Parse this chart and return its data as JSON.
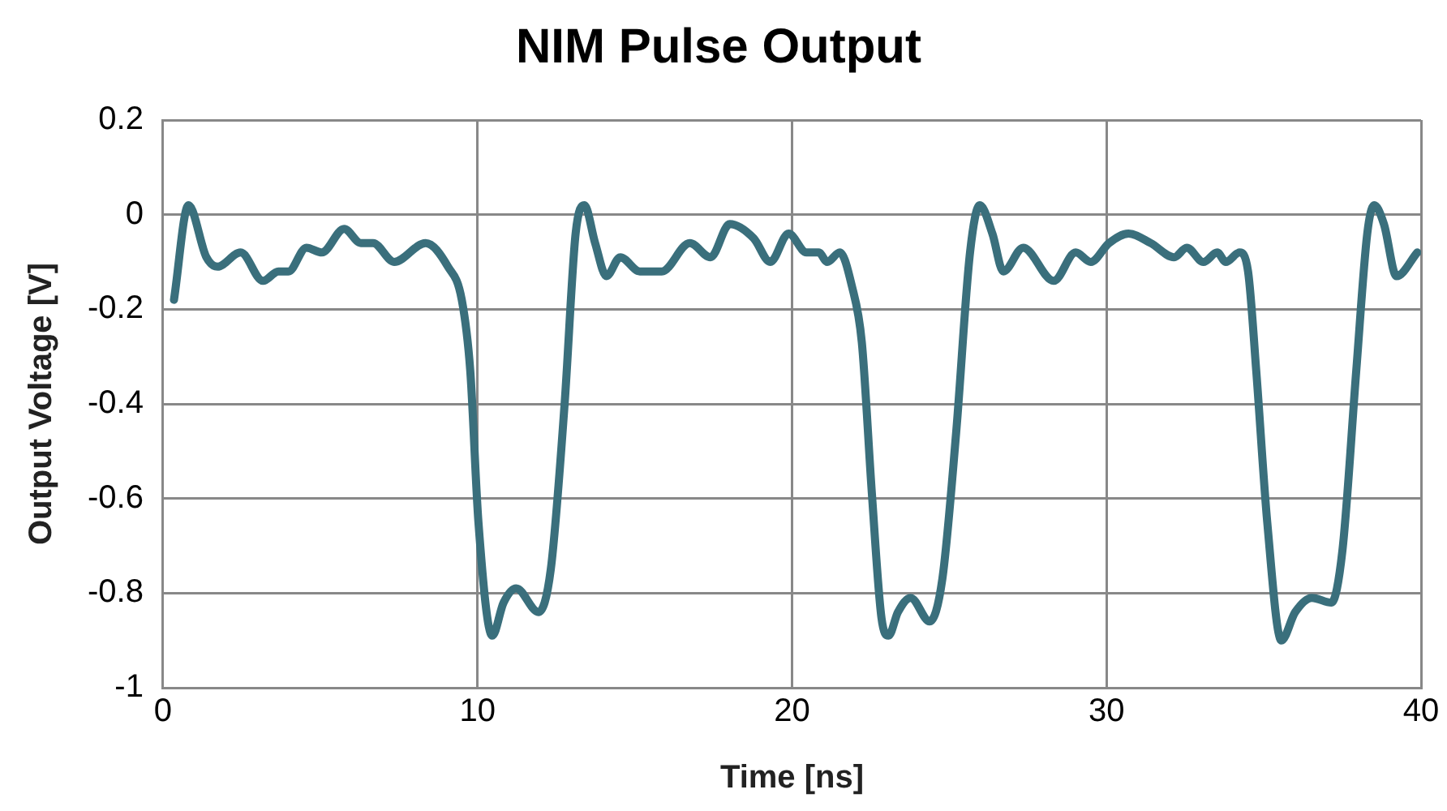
{
  "chart_data": {
    "type": "line",
    "title": "NIM Pulse Output",
    "xlabel": "Time [ns]",
    "ylabel": "Output Voltage [V]",
    "xlim": [
      0,
      40
    ],
    "xticks": [
      0,
      10,
      20,
      30,
      40
    ],
    "ylim": [
      -1,
      0.2
    ],
    "yticks": [
      -1,
      -0.8,
      -0.6,
      -0.4,
      -0.2,
      0,
      0.2
    ],
    "grid": true,
    "legend": false,
    "marker": "none",
    "line_style": "solid",
    "series": [
      {
        "color": "#3a6f7c",
        "x": [
          0.35,
          0.81,
          1.38,
          1.73,
          2.47,
          3.18,
          3.67,
          3.99,
          4.56,
          5.05,
          5.76,
          6.29,
          6.68,
          7.35,
          8.35,
          9.06,
          9.5,
          9.77,
          10.03,
          10.47,
          10.83,
          11.23,
          11.94,
          12.33,
          12.77,
          13.12,
          13.4,
          13.74,
          14.1,
          14.54,
          15.16,
          15.86,
          16.75,
          17.41,
          18.02,
          18.78,
          19.31,
          19.89,
          20.46,
          20.85,
          21.12,
          21.52,
          21.9,
          22.22,
          22.54,
          22.84,
          23.07,
          23.37,
          23.77,
          24.38,
          24.78,
          25.22,
          25.66,
          25.97,
          26.37,
          26.72,
          27.35,
          28.32,
          29.02,
          29.5,
          30.08,
          30.7,
          31.4,
          32.15,
          32.55,
          33.08,
          33.52,
          33.79,
          34.23,
          34.5,
          34.76,
          35.11,
          35.56,
          36.0,
          36.53,
          37.15,
          37.5,
          37.94,
          38.29,
          38.51,
          38.82,
          39.22,
          39.88
        ],
        "values": [
          -0.18,
          0.02,
          -0.09,
          -0.11,
          -0.08,
          -0.14,
          -0.12,
          -0.12,
          -0.07,
          -0.08,
          -0.03,
          -0.06,
          -0.06,
          -0.1,
          -0.06,
          -0.11,
          -0.18,
          -0.33,
          -0.65,
          -0.89,
          -0.82,
          -0.79,
          -0.84,
          -0.75,
          -0.4,
          -0.04,
          0.02,
          -0.06,
          -0.13,
          -0.09,
          -0.12,
          -0.12,
          -0.06,
          -0.09,
          -0.02,
          -0.05,
          -0.1,
          -0.04,
          -0.08,
          -0.08,
          -0.1,
          -0.08,
          -0.15,
          -0.27,
          -0.59,
          -0.85,
          -0.89,
          -0.84,
          -0.81,
          -0.86,
          -0.77,
          -0.46,
          -0.08,
          0.02,
          -0.04,
          -0.12,
          -0.07,
          -0.14,
          -0.08,
          -0.1,
          -0.06,
          -0.04,
          -0.06,
          -0.09,
          -0.07,
          -0.1,
          -0.08,
          -0.1,
          -0.08,
          -0.12,
          -0.33,
          -0.65,
          -0.9,
          -0.84,
          -0.81,
          -0.82,
          -0.71,
          -0.33,
          -0.04,
          0.02,
          -0.02,
          -0.13,
          -0.08
        ]
      }
    ]
  }
}
